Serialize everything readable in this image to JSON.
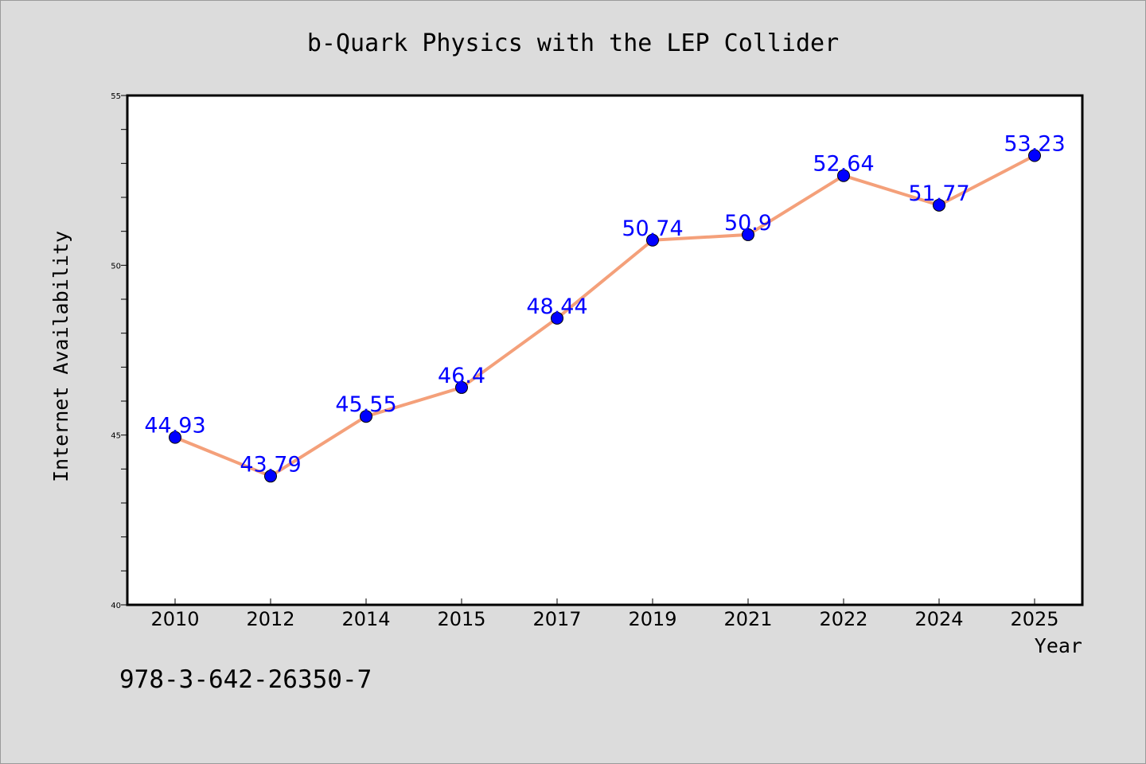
{
  "chart_data": {
    "type": "line",
    "title": "b-Quark Physics with the LEP Collider",
    "xlabel": "Year",
    "ylabel": "Internet Availability",
    "categories": [
      "2010",
      "2012",
      "2014",
      "2015",
      "2017",
      "2019",
      "2021",
      "2022",
      "2024",
      "2025"
    ],
    "series": [
      {
        "values": [
          44.93,
          43.79,
          45.55,
          46.4,
          48.44,
          50.74,
          50.9,
          52.64,
          51.77,
          53.23
        ],
        "data_labels": [
          "44.93",
          "43.79",
          "45.55",
          "46.4",
          "48.44",
          "50.74",
          "50.9",
          "52.64",
          "51.77",
          "53.23"
        ],
        "line_color": "#f4a07a",
        "marker_color": "#0000ff"
      }
    ],
    "ylim": [
      40,
      55
    ],
    "y_ticks": [
      "40",
      "45",
      "50",
      "55"
    ],
    "grid": false,
    "legend": "none"
  },
  "footer_text": "978-3-642-26350-7",
  "colors": {
    "background": "#dcdcdc",
    "plot_area": "#ffffff",
    "label_color": "#0000ff"
  }
}
